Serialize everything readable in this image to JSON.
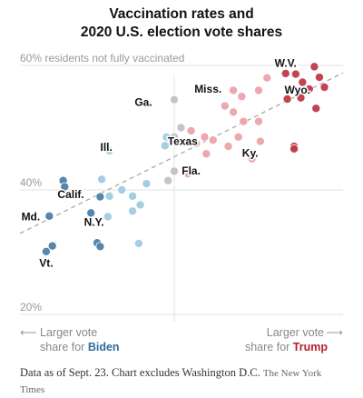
{
  "title_line1": "Vaccination rates and",
  "title_line2": "2020 U.S. election vote shares",
  "footnote": "Data as of Sept. 23. Chart excludes Washington D.C.",
  "source": "The New York Times",
  "colors": {
    "dem_strong": "#4f7ea6",
    "dem_light": "#9fcbe0",
    "gop_strong": "#c1394a",
    "gop_light": "#eba3aa",
    "neutral": "#c2c2c2",
    "trump_label": "#b3202e",
    "biden_label": "#2b6e9b"
  },
  "chart_data": {
    "type": "scatter",
    "ylabel": "residents not fully vaccinated",
    "yticks": [
      {
        "value": 60,
        "label": "60% residents not fully vaccinated"
      },
      {
        "value": 40,
        "label": "40%"
      },
      {
        "value": 20,
        "label": "20%"
      }
    ],
    "ylim": [
      20,
      60
    ],
    "xlim": [
      -1,
      1
    ],
    "x_left_label_line1": "Larger vote",
    "x_left_label_prefix": "share for ",
    "x_left_label_name": "Biden",
    "x_right_label_line1": "Larger vote",
    "x_right_label_prefix": "share for ",
    "x_right_label_name": "Trump",
    "left_arrow": "⟵",
    "right_arrow": "⟶",
    "trendline": {
      "x0": -1.0,
      "y0": 33.0,
      "x1": 1.0,
      "y1": 58.8
    },
    "labels": [
      {
        "text": "W.V.",
        "x": 0.66,
        "y": 59.8
      },
      {
        "text": "Wyo.",
        "x": 0.73,
        "y": 55.5
      },
      {
        "text": "Miss.",
        "x": 0.2,
        "y": 55.6
      },
      {
        "text": "Ga.",
        "x": -0.2,
        "y": 53.5
      },
      {
        "text": "Texas",
        "x": 0.05,
        "y": 47.2
      },
      {
        "text": "Ky.",
        "x": 0.45,
        "y": 45.3
      },
      {
        "text": "Ill.",
        "x": -0.44,
        "y": 46.3
      },
      {
        "text": "Fla.",
        "x": 0.1,
        "y": 42.5
      },
      {
        "text": "Calif.",
        "x": -0.67,
        "y": 38.7
      },
      {
        "text": "Md.",
        "x": -0.93,
        "y": 35.1
      },
      {
        "text": "N.Y.",
        "x": -0.52,
        "y": 34.2
      },
      {
        "text": "Vt.",
        "x": -0.83,
        "y": 27.7
      }
    ],
    "series": [
      {
        "name": "strong-biden",
        "color": "#4f7ea6",
        "points": [
          {
            "x": -0.83,
            "y": 30.1
          },
          {
            "x": -0.79,
            "y": 31.0
          },
          {
            "x": -0.81,
            "y": 35.8
          },
          {
            "x": -0.72,
            "y": 41.5
          },
          {
            "x": -0.71,
            "y": 40.5
          },
          {
            "x": -0.54,
            "y": 36.3
          },
          {
            "x": -0.48,
            "y": 38.9
          },
          {
            "x": -0.5,
            "y": 31.5
          },
          {
            "x": -0.48,
            "y": 30.9
          }
        ]
      },
      {
        "name": "lean-biden",
        "color": "#9fcbe0",
        "points": [
          {
            "x": -0.42,
            "y": 46.3
          },
          {
            "x": -0.47,
            "y": 41.7
          },
          {
            "x": -0.42,
            "y": 39.0
          },
          {
            "x": -0.34,
            "y": 40.0
          },
          {
            "x": -0.27,
            "y": 39.0
          },
          {
            "x": -0.43,
            "y": 35.7
          },
          {
            "x": -0.27,
            "y": 36.6
          },
          {
            "x": -0.22,
            "y": 37.6
          },
          {
            "x": -0.18,
            "y": 41.0
          },
          {
            "x": -0.23,
            "y": 31.4
          },
          {
            "x": -0.06,
            "y": 47.1
          },
          {
            "x": -0.05,
            "y": 48.5
          }
        ]
      },
      {
        "name": "toss-up",
        "color": "#c2c2c2",
        "points": [
          {
            "x": 0.0,
            "y": 54.5
          },
          {
            "x": 0.04,
            "y": 50.0
          },
          {
            "x": 0.0,
            "y": 48.5
          },
          {
            "x": 0.0,
            "y": 43.0
          },
          {
            "x": -0.04,
            "y": 41.5
          }
        ]
      },
      {
        "name": "lean-trump",
        "color": "#eba3aa",
        "points": [
          {
            "x": 0.1,
            "y": 49.5
          },
          {
            "x": 0.18,
            "y": 48.5
          },
          {
            "x": 0.13,
            "y": 47.5
          },
          {
            "x": 0.23,
            "y": 48.0
          },
          {
            "x": 0.32,
            "y": 47.0
          },
          {
            "x": 0.38,
            "y": 48.5
          },
          {
            "x": 0.41,
            "y": 51.0
          },
          {
            "x": 0.5,
            "y": 51.0
          },
          {
            "x": 0.3,
            "y": 53.5
          },
          {
            "x": 0.35,
            "y": 52.5
          },
          {
            "x": 0.4,
            "y": 55.0
          },
          {
            "x": 0.5,
            "y": 56.0
          },
          {
            "x": 0.55,
            "y": 58.0
          },
          {
            "x": 0.35,
            "y": 56.0
          },
          {
            "x": 0.19,
            "y": 45.8
          },
          {
            "x": 0.08,
            "y": 42.6
          },
          {
            "x": 0.46,
            "y": 45.0
          },
          {
            "x": 0.51,
            "y": 47.8
          }
        ]
      },
      {
        "name": "strong-trump",
        "color": "#c1394a",
        "points": [
          {
            "x": 0.66,
            "y": 58.7
          },
          {
            "x": 0.72,
            "y": 58.6
          },
          {
            "x": 0.76,
            "y": 57.3
          },
          {
            "x": 0.86,
            "y": 58.1
          },
          {
            "x": 0.89,
            "y": 56.5
          },
          {
            "x": 0.83,
            "y": 59.8
          },
          {
            "x": 0.69,
            "y": 55.9
          },
          {
            "x": 0.8,
            "y": 56.2
          },
          {
            "x": 0.67,
            "y": 54.6
          },
          {
            "x": 0.75,
            "y": 54.8
          },
          {
            "x": 0.84,
            "y": 53.1
          },
          {
            "x": 0.71,
            "y": 47.0
          },
          {
            "x": 0.71,
            "y": 46.6
          }
        ]
      }
    ]
  }
}
